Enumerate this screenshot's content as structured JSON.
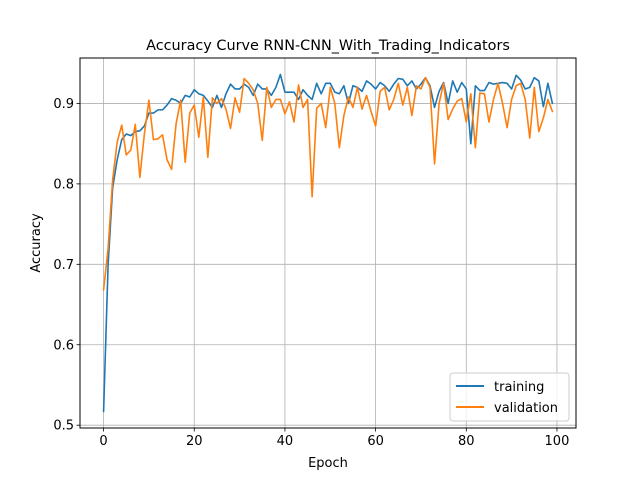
{
  "chart_data": {
    "type": "line",
    "title": "Accuracy Curve RNN-CNN_With_Trading_Indicators",
    "xlabel": "Epoch",
    "ylabel": "Accuracy",
    "xlim": [
      -5.2,
      104.2
    ],
    "ylim": [
      0.4965,
      0.9565
    ],
    "xticks": [
      0,
      20,
      40,
      60,
      80,
      100
    ],
    "yticks": [
      0.5,
      0.6,
      0.7,
      0.8,
      0.9
    ],
    "grid": true,
    "legend": "lower-right",
    "colors": {
      "training": "#1f77b4",
      "validation": "#ff7f0e"
    },
    "series": [
      {
        "name": "training",
        "color": "#1f77b4",
        "values": [
          0.517,
          0.7,
          0.795,
          0.83,
          0.855,
          0.862,
          0.86,
          0.865,
          0.866,
          0.872,
          0.888,
          0.888,
          0.892,
          0.892,
          0.898,
          0.906,
          0.904,
          0.9,
          0.91,
          0.908,
          0.917,
          0.912,
          0.91,
          0.903,
          0.895,
          0.91,
          0.895,
          0.912,
          0.924,
          0.918,
          0.918,
          0.924,
          0.92,
          0.91,
          0.924,
          0.918,
          0.918,
          0.91,
          0.92,
          0.936,
          0.914,
          0.914,
          0.914,
          0.905,
          0.917,
          0.91,
          0.905,
          0.925,
          0.912,
          0.925,
          0.925,
          0.914,
          0.912,
          0.922,
          0.9,
          0.922,
          0.92,
          0.915,
          0.928,
          0.924,
          0.918,
          0.926,
          0.922,
          0.915,
          0.924,
          0.931,
          0.93,
          0.922,
          0.928,
          0.918,
          0.924,
          0.932,
          0.922,
          0.895,
          0.915,
          0.926,
          0.9,
          0.928,
          0.914,
          0.926,
          0.918,
          0.85,
          0.922,
          0.916,
          0.916,
          0.926,
          0.924,
          0.925,
          0.926,
          0.925,
          0.918,
          0.935,
          0.929,
          0.918,
          0.92,
          0.932,
          0.928,
          0.896,
          0.925,
          0.9
        ]
      },
      {
        "name": "validation",
        "color": "#ff7f0e",
        "values": [
          0.668,
          0.72,
          0.805,
          0.852,
          0.873,
          0.836,
          0.842,
          0.874,
          0.808,
          0.862,
          0.904,
          0.855,
          0.856,
          0.861,
          0.83,
          0.818,
          0.875,
          0.904,
          0.827,
          0.888,
          0.898,
          0.858,
          0.908,
          0.833,
          0.907,
          0.9,
          0.906,
          0.893,
          0.869,
          0.907,
          0.889,
          0.931,
          0.925,
          0.917,
          0.9,
          0.854,
          0.92,
          0.895,
          0.905,
          0.905,
          0.887,
          0.902,
          0.877,
          0.923,
          0.895,
          0.905,
          0.784,
          0.894,
          0.9,
          0.87,
          0.92,
          0.9,
          0.845,
          0.885,
          0.908,
          0.895,
          0.92,
          0.893,
          0.91,
          0.89,
          0.872,
          0.915,
          0.92,
          0.892,
          0.905,
          0.925,
          0.898,
          0.92,
          0.885,
          0.922,
          0.918,
          0.932,
          0.92,
          0.825,
          0.9,
          0.925,
          0.88,
          0.893,
          0.903,
          0.906,
          0.877,
          0.912,
          0.845,
          0.913,
          0.912,
          0.877,
          0.905,
          0.925,
          0.9,
          0.87,
          0.905,
          0.922,
          0.925,
          0.905,
          0.857,
          0.92,
          0.865,
          0.882,
          0.905,
          0.89
        ]
      }
    ]
  }
}
